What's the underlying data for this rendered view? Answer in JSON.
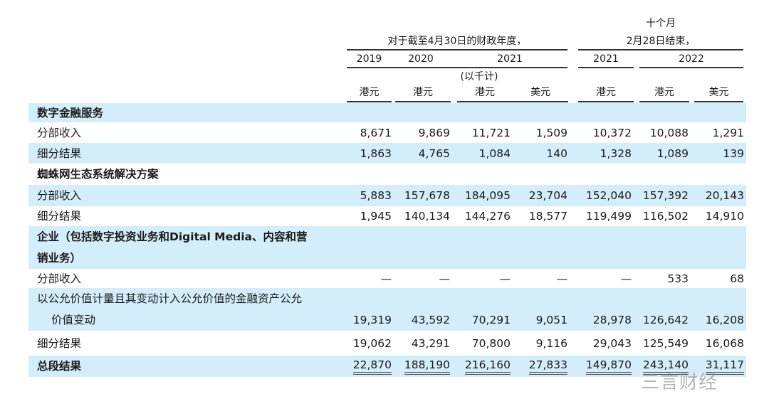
{
  "header": {
    "ten_months": "十个月",
    "fiscal_year": "对于截至4月30日的财政年度，",
    "ended": "2月28日结束，",
    "years": [
      "2019",
      "2020",
      "2021",
      "2021",
      "2022"
    ],
    "unit": "(以千计)",
    "currencies": [
      "港元",
      "港元",
      "港元",
      "美元",
      "港元",
      "港元",
      "美元"
    ]
  },
  "rows": [
    {
      "label": "数字金融服务",
      "bold": true,
      "blue": true,
      "values": []
    },
    {
      "label": "分部收入",
      "values": [
        "8,671",
        "9,869",
        "11,721",
        "1,509",
        "10,372",
        "10,088",
        "1,291"
      ]
    },
    {
      "label": "细分结果",
      "blue": true,
      "values": [
        "1,863",
        "4,765",
        "1,084",
        "140",
        "1,328",
        "1,089",
        "139"
      ]
    },
    {
      "label": "蜘蛛网生态系统解决方案",
      "bold": true,
      "values": []
    },
    {
      "label": "分部收入",
      "blue": true,
      "values": [
        "5,883",
        "157,678",
        "184,095",
        "23,704",
        "152,040",
        "157,392",
        "20,143"
      ]
    },
    {
      "label": "细分结果",
      "values": [
        "1,945",
        "140,134",
        "144,276",
        "18,577",
        "119,499",
        "116,502",
        "14,910"
      ]
    },
    {
      "label": "企业（包括数字投资业务和Digital Media、内容和营",
      "label2": "销业务）",
      "bold": true,
      "blue": true,
      "values": []
    },
    {
      "label": "分部收入",
      "values": [
        "—",
        "—",
        "—",
        "—",
        "—",
        "533",
        "68"
      ]
    },
    {
      "label": "以公允价值计量且其变动计入公允价值的金融资产公允",
      "label2": "价值变动",
      "blue": true,
      "values": [
        "19,319",
        "43,592",
        "70,291",
        "9,051",
        "28,978",
        "126,642",
        "16,208"
      ]
    },
    {
      "label": "细分结果",
      "values": [
        "19,062",
        "43,291",
        "70,800",
        "9,116",
        "29,043",
        "125,549",
        "16,068"
      ]
    },
    {
      "label": "总段结果",
      "bold": true,
      "blue": true,
      "total": true,
      "values": [
        "22,870",
        "188,190",
        "216,160",
        "27,833",
        "149,870",
        "243,140",
        "31,117"
      ]
    }
  ],
  "watermark": "三言财经"
}
